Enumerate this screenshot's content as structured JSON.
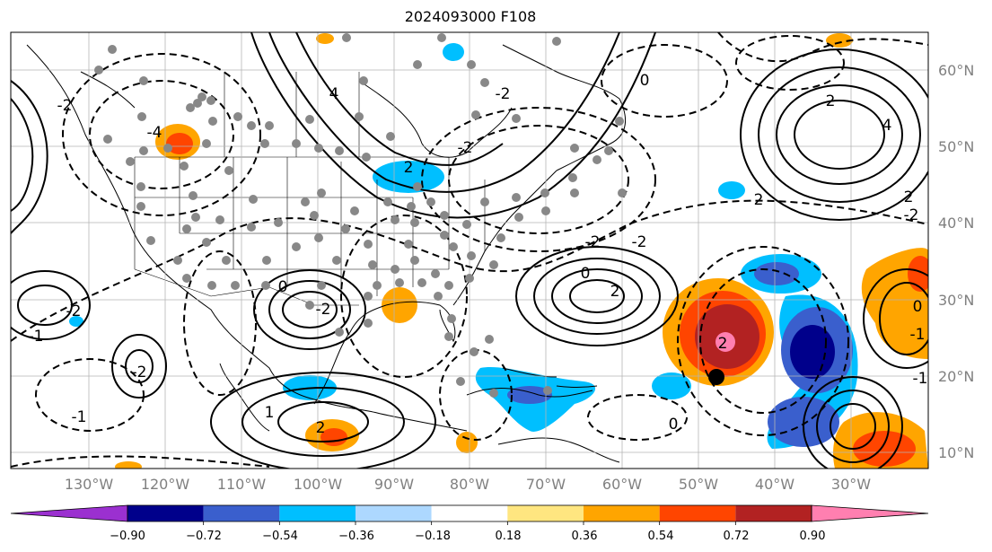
{
  "title": "2024093000 F108",
  "lat_labels": [
    "60°N",
    "50°N",
    "40°N",
    "30°N",
    "20°N",
    "10°N"
  ],
  "lon_labels": [
    "130°W",
    "120°W",
    "110°W",
    "100°W",
    "90°W",
    "80°W",
    "70°W",
    "60°W",
    "50°W",
    "40°W",
    "30°W"
  ],
  "colorbar": {
    "ticks": [
      "−0.90",
      "−0.72",
      "−0.54",
      "−0.36",
      "−0.18",
      "0.18",
      "0.36",
      "0.54",
      "0.72",
      "0.90"
    ],
    "colors": [
      "#9b30d0",
      "#00008b",
      "#3a5fcd",
      "#00bfff",
      "#add8ff",
      "#ffffff",
      "#ffe680",
      "#ffa500",
      "#ff4500",
      "#b22222",
      "#ff7fb0"
    ]
  },
  "contour_labels": [
    "-2",
    "-4",
    "-2",
    "0",
    "2",
    "4",
    "-2",
    "-2",
    "-2",
    "2",
    "-1",
    "-2",
    "-2",
    "0",
    "0",
    "-1",
    "1",
    "2",
    "-2",
    "2",
    "0",
    "-1",
    "4",
    "2",
    "-2",
    "2",
    "0",
    "-1"
  ],
  "markers": {
    "storm_label": "2"
  }
}
